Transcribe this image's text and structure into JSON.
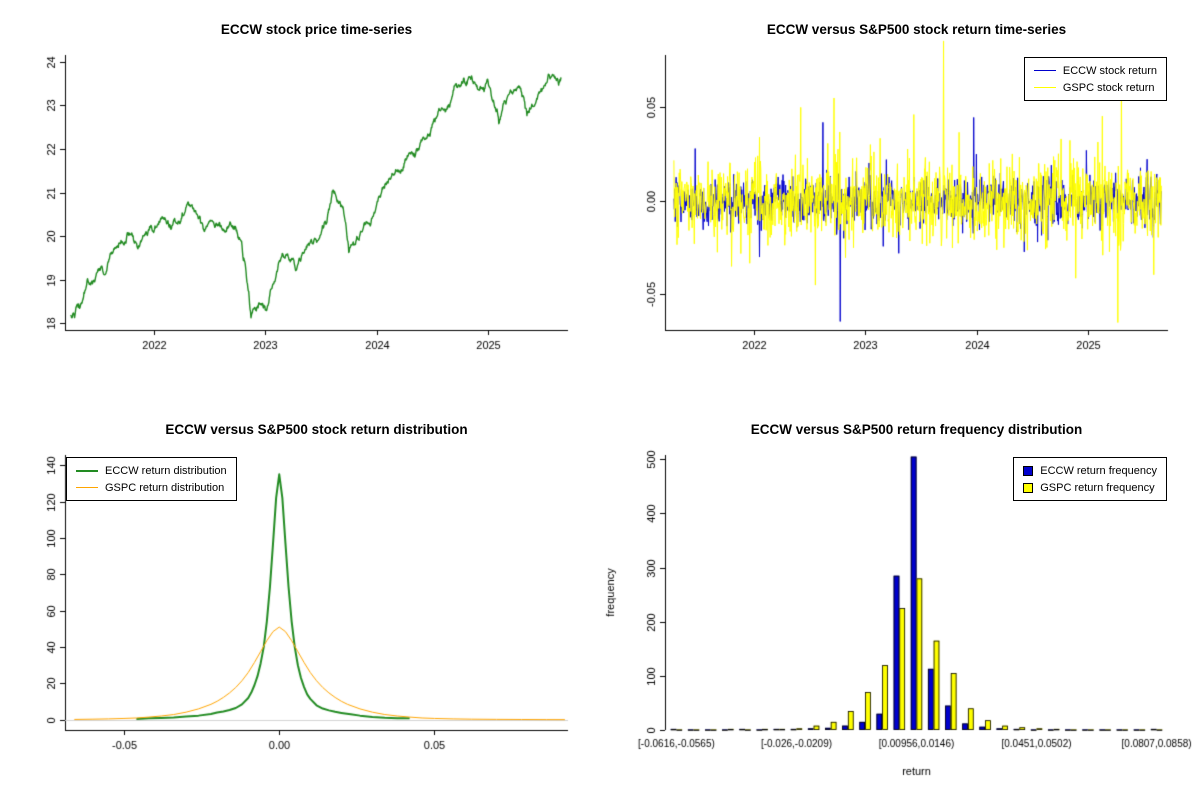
{
  "figure": {
    "background": "#ffffff"
  },
  "chart_data": [
    {
      "id": "price-time-series",
      "type": "line",
      "title": "ECCW stock price time-series",
      "line_color": "#228B22",
      "line_width": 1.4,
      "xlim": [
        2021.2,
        2025.72
      ],
      "ylim": [
        17.85,
        24.15
      ],
      "x_tick_values": [
        2022,
        2023,
        2024,
        2025
      ],
      "x_ticks": [
        "2022",
        "2023",
        "2024",
        "2025"
      ],
      "y_tick_values": [
        18,
        19,
        20,
        21,
        22,
        23,
        24
      ],
      "y_ticks": [
        "18",
        "19",
        "20",
        "21",
        "22",
        "23",
        "24"
      ],
      "n_points": 1100,
      "noise_sd": 0.035,
      "seed": 42,
      "waypoints": [
        [
          2021.25,
          18.2
        ],
        [
          2021.3,
          18.45
        ],
        [
          2021.33,
          18.35
        ],
        [
          2021.4,
          18.9
        ],
        [
          2021.45,
          19.0
        ],
        [
          2021.5,
          19.25
        ],
        [
          2021.55,
          19.1
        ],
        [
          2021.62,
          19.65
        ],
        [
          2021.7,
          19.8
        ],
        [
          2021.78,
          20.05
        ],
        [
          2021.85,
          19.75
        ],
        [
          2021.92,
          19.95
        ],
        [
          2022.0,
          20.15
        ],
        [
          2022.08,
          20.35
        ],
        [
          2022.15,
          20.2
        ],
        [
          2022.22,
          20.5
        ],
        [
          2022.3,
          20.72
        ],
        [
          2022.38,
          20.55
        ],
        [
          2022.45,
          20.15
        ],
        [
          2022.5,
          20.45
        ],
        [
          2022.58,
          20.4
        ],
        [
          2022.65,
          20.2
        ],
        [
          2022.72,
          20.3
        ],
        [
          2022.78,
          19.8
        ],
        [
          2022.82,
          19.3
        ],
        [
          2022.87,
          18.05
        ],
        [
          2022.92,
          18.3
        ],
        [
          2022.97,
          18.55
        ],
        [
          2023.02,
          18.35
        ],
        [
          2023.08,
          19.0
        ],
        [
          2023.15,
          19.55
        ],
        [
          2023.22,
          19.5
        ],
        [
          2023.28,
          19.3
        ],
        [
          2023.35,
          19.6
        ],
        [
          2023.42,
          19.85
        ],
        [
          2023.5,
          20.0
        ],
        [
          2023.55,
          20.3
        ],
        [
          2023.6,
          21.0
        ],
        [
          2023.65,
          20.9
        ],
        [
          2023.7,
          20.75
        ],
        [
          2023.75,
          19.75
        ],
        [
          2023.8,
          19.85
        ],
        [
          2023.88,
          20.0
        ],
        [
          2023.95,
          20.3
        ],
        [
          2024.02,
          20.8
        ],
        [
          2024.1,
          21.25
        ],
        [
          2024.18,
          21.4
        ],
        [
          2024.25,
          21.55
        ],
        [
          2024.32,
          21.8
        ],
        [
          2024.4,
          22.05
        ],
        [
          2024.48,
          22.3
        ],
        [
          2024.55,
          22.85
        ],
        [
          2024.62,
          23.0
        ],
        [
          2024.7,
          23.3
        ],
        [
          2024.78,
          23.55
        ],
        [
          2024.85,
          23.65
        ],
        [
          2024.9,
          23.4
        ],
        [
          2024.95,
          23.3
        ],
        [
          2025.0,
          23.55
        ],
        [
          2025.05,
          23.2
        ],
        [
          2025.1,
          22.6
        ],
        [
          2025.15,
          23.0
        ],
        [
          2025.2,
          23.25
        ],
        [
          2025.28,
          23.4
        ],
        [
          2025.35,
          22.75
        ],
        [
          2025.42,
          23.1
        ],
        [
          2025.5,
          23.45
        ],
        [
          2025.55,
          23.7
        ],
        [
          2025.6,
          23.65
        ],
        [
          2025.66,
          23.5
        ]
      ]
    },
    {
      "id": "return-time-series",
      "type": "returns",
      "title": "ECCW versus S&P500 stock return time-series",
      "xlim": [
        2021.2,
        2025.72
      ],
      "ylim": [
        -0.069,
        0.078
      ],
      "data_xrange": [
        2021.28,
        2025.66
      ],
      "x_tick_values": [
        2022,
        2023,
        2024,
        2025
      ],
      "x_ticks": [
        "2022",
        "2023",
        "2024",
        "2025"
      ],
      "y_tick_values": [
        -0.05,
        0,
        0.05
      ],
      "y_ticks": [
        "-0.05",
        "0.00",
        "0.05"
      ],
      "series": [
        {
          "name": "ECCW stock return",
          "color": "#0000CD",
          "line_width": 1,
          "sd": 0.0065,
          "spike_prob": 0.012,
          "spike_scale": 2.8,
          "seed": 101,
          "n": 1100,
          "spikes": [
            [
              2021.47,
              0.028
            ],
            [
              2022.05,
              -0.03
            ],
            [
              2022.62,
              0.042
            ],
            [
              2023.3,
              -0.028
            ],
            [
              2024.0,
              0.025
            ],
            [
              2024.55,
              -0.022
            ]
          ]
        },
        {
          "name": "GSPC stock return",
          "color": "#FFFF00",
          "line_width": 1,
          "sd": 0.011,
          "spike_prob": 0.02,
          "spike_scale": 2.2,
          "seed": 202,
          "n": 1100,
          "spikes": [
            [
              2021.8,
              -0.035
            ],
            [
              2022.42,
              0.05
            ],
            [
              2022.55,
              -0.045
            ],
            [
              2022.72,
              0.055
            ],
            [
              2025.27,
              -0.065
            ],
            [
              2025.3,
              0.07
            ]
          ]
        }
      ]
    },
    {
      "id": "return-distribution",
      "type": "density",
      "title": "ECCW versus S&P500 stock return distribution",
      "xlim": [
        -0.069,
        0.093
      ],
      "ylim": [
        -5.6,
        145.6
      ],
      "x_tick_values": [
        -0.05,
        0,
        0.05
      ],
      "x_ticks": [
        "-0.05",
        "0.00",
        "0.05"
      ],
      "y_tick_values": [
        0,
        20,
        40,
        60,
        80,
        100,
        120,
        140
      ],
      "y_ticks": [
        "0",
        "20",
        "40",
        "60",
        "80",
        "100",
        "120",
        "140"
      ],
      "zero_line_color": "#D3D3D3",
      "series": [
        {
          "name": "ECCW return distribution",
          "color": "#228B22",
          "line_width": 2,
          "points": [
            [
              -0.046,
              0.5
            ],
            [
              -0.042,
              0.8
            ],
            [
              -0.038,
              1.0
            ],
            [
              -0.034,
              1.3
            ],
            [
              -0.03,
              1.8
            ],
            [
              -0.026,
              2.3
            ],
            [
              -0.022,
              3.2
            ],
            [
              -0.02,
              4.0
            ],
            [
              -0.018,
              4.6
            ],
            [
              -0.016,
              5.4
            ],
            [
              -0.014,
              6.5
            ],
            [
              -0.012,
              8.5
            ],
            [
              -0.01,
              12
            ],
            [
              -0.009,
              15
            ],
            [
              -0.008,
              19
            ],
            [
              -0.007,
              24
            ],
            [
              -0.006,
              31
            ],
            [
              -0.005,
              40
            ],
            [
              -0.004,
              54
            ],
            [
              -0.003,
              73
            ],
            [
              -0.002,
              97
            ],
            [
              -0.001,
              122
            ],
            [
              0,
              135
            ],
            [
              0.001,
              122
            ],
            [
              0.002,
              97
            ],
            [
              0.003,
              73
            ],
            [
              0.004,
              54
            ],
            [
              0.005,
              40
            ],
            [
              0.006,
              30
            ],
            [
              0.007,
              23
            ],
            [
              0.008,
              18
            ],
            [
              0.009,
              14
            ],
            [
              0.01,
              11.5
            ],
            [
              0.012,
              8
            ],
            [
              0.014,
              6.2
            ],
            [
              0.016,
              5.2
            ],
            [
              0.018,
              4.4
            ],
            [
              0.02,
              3.8
            ],
            [
              0.023,
              3.0
            ],
            [
              0.026,
              2.3
            ],
            [
              0.03,
              1.6
            ],
            [
              0.034,
              1.1
            ],
            [
              0.038,
              0.9
            ],
            [
              0.042,
              0.8
            ]
          ]
        },
        {
          "name": "GSPC return distribution",
          "color": "#FFA500",
          "line_width": 1,
          "points": [
            [
              -0.066,
              0.2
            ],
            [
              -0.06,
              0.35
            ],
            [
              -0.055,
              0.5
            ],
            [
              -0.05,
              0.75
            ],
            [
              -0.046,
              1.0
            ],
            [
              -0.042,
              1.5
            ],
            [
              -0.038,
              2.1
            ],
            [
              -0.034,
              2.9
            ],
            [
              -0.03,
              4.2
            ],
            [
              -0.026,
              6.0
            ],
            [
              -0.022,
              8.5
            ],
            [
              -0.02,
              10.2
            ],
            [
              -0.018,
              12.3
            ],
            [
              -0.016,
              14.8
            ],
            [
              -0.014,
              17.8
            ],
            [
              -0.012,
              21.5
            ],
            [
              -0.01,
              26
            ],
            [
              -0.008,
              31.5
            ],
            [
              -0.006,
              37.5
            ],
            [
              -0.004,
              43.5
            ],
            [
              -0.002,
              48.5
            ],
            [
              0,
              51
            ],
            [
              0.002,
              48.5
            ],
            [
              0.004,
              43.5
            ],
            [
              0.006,
              37.5
            ],
            [
              0.008,
              31.5
            ],
            [
              0.01,
              26
            ],
            [
              0.012,
              21.5
            ],
            [
              0.014,
              17.8
            ],
            [
              0.016,
              14.8
            ],
            [
              0.018,
              12.3
            ],
            [
              0.02,
              10.2
            ],
            [
              0.022,
              8.5
            ],
            [
              0.026,
              6.0
            ],
            [
              0.03,
              4.2
            ],
            [
              0.034,
              2.9
            ],
            [
              0.038,
              2.1
            ],
            [
              0.042,
              1.5
            ],
            [
              0.046,
              1.0
            ],
            [
              0.05,
              0.75
            ],
            [
              0.056,
              0.5
            ],
            [
              0.062,
              0.35
            ],
            [
              0.07,
              0.25
            ],
            [
              0.078,
              0.18
            ],
            [
              0.086,
              0.12
            ],
            [
              0.092,
              0.1
            ]
          ]
        }
      ]
    },
    {
      "id": "return-frequency",
      "type": "grouped-bar",
      "title": "ECCW versus S&P500 return frequency distribution",
      "xlabel": "return",
      "ylabel": "frequency",
      "xlim": [
        0,
        1
      ],
      "ylim": [
        0,
        508
      ],
      "y_tick_values": [
        0,
        100,
        200,
        300,
        400,
        500
      ],
      "y_ticks": [
        "0",
        "100",
        "200",
        "300",
        "400",
        "500"
      ],
      "n_bins": 29,
      "x_tick_bins": [
        0,
        7,
        14,
        21,
        28
      ],
      "x_ticks": [
        "[-0.0616,-0.0565)",
        "[-0.026,-0.0209)",
        "[0.00956,0.0146)",
        "[0.0451,0.0502)",
        "[0.0807,0.0858)"
      ],
      "bar_border": "#000000",
      "series": [
        {
          "name": "ECCW return frequency",
          "color": "#0000CD",
          "values": [
            2,
            1,
            1,
            1,
            2,
            1,
            2,
            2,
            3,
            4,
            8,
            15,
            30,
            285,
            505,
            113,
            45,
            12,
            6,
            3,
            2,
            1,
            1,
            1,
            1,
            1,
            1,
            1,
            2
          ]
        },
        {
          "name": "GSPC return frequency",
          "color": "#FFFF00",
          "values": [
            1,
            1,
            1,
            2,
            1,
            2,
            2,
            3,
            8,
            15,
            35,
            70,
            120,
            225,
            280,
            165,
            105,
            40,
            18,
            8,
            5,
            3,
            2,
            1,
            1,
            1,
            1,
            1,
            1
          ]
        }
      ]
    }
  ]
}
